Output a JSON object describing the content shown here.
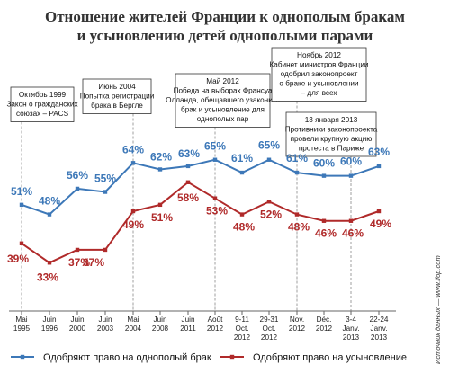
{
  "title_lines": [
    "Отношение жителей Франции к однополым бракам",
    "и усыновлению детей однополыми парами"
  ],
  "source_text": "Источник данных — www.ifop.com",
  "colors": {
    "marriage": "#3d78b8",
    "adoption": "#b02a2a",
    "axis": "#666666",
    "guide": "#888888"
  },
  "annotations": [
    {
      "lines": [
        "Октябрь 1999",
        "Закон о гражданских",
        "союзах – PACS"
      ],
      "index": 0
    },
    {
      "lines": [
        "Июнь 2004",
        "Попытка регистрации",
        "брака в Бергле"
      ],
      "index": 4
    },
    {
      "lines": [
        "Май 2012",
        "Победа на выборах Франсуа",
        "Олланда, обещавшего узаконить",
        "брак и усыновление для",
        "однополых пар"
      ],
      "index": 7
    },
    {
      "lines": [
        "Ноябрь 2012",
        "Кабинет министров Франции",
        "одобрил законопроект",
        "о браке и усыновлении",
        "– для всех"
      ],
      "index": 10
    },
    {
      "lines": [
        "13 января 2013",
        "Противники законопроекта",
        "провели крупную акцию",
        "протеста в Париже"
      ],
      "index": 12
    }
  ],
  "chart_data": {
    "type": "line",
    "categories": [
      [
        "Mai",
        "1995"
      ],
      [
        "Juin",
        "1996"
      ],
      [
        "Juin",
        "2000"
      ],
      [
        "Juin",
        "2003"
      ],
      [
        "Mai",
        "2004"
      ],
      [
        "Juin",
        "2008"
      ],
      [
        "Juin",
        "2011"
      ],
      [
        "Août",
        "2012"
      ],
      [
        "9-11",
        "Oct.",
        "2012"
      ],
      [
        "29-31",
        "Oct.",
        "2012"
      ],
      [
        "Nov.",
        "2012"
      ],
      [
        "Déc.",
        "2012"
      ],
      [
        "3-4",
        "Janv.",
        "2013"
      ],
      [
        "22-24",
        "Janv.",
        "2013"
      ]
    ],
    "series": [
      {
        "name": "Одобряют право на однополый брак",
        "values": [
          51,
          48,
          56,
          55,
          64,
          62,
          63,
          65,
          61,
          65,
          61,
          60,
          60,
          63
        ]
      },
      {
        "name": "Одобряют право на усыновление",
        "values": [
          39,
          33,
          37,
          37,
          49,
          51,
          58,
          53,
          48,
          52,
          48,
          46,
          46,
          49
        ]
      }
    ],
    "unit": "%",
    "ylim": [
      30,
      68
    ],
    "grid": false,
    "legend_position": "bottom"
  }
}
